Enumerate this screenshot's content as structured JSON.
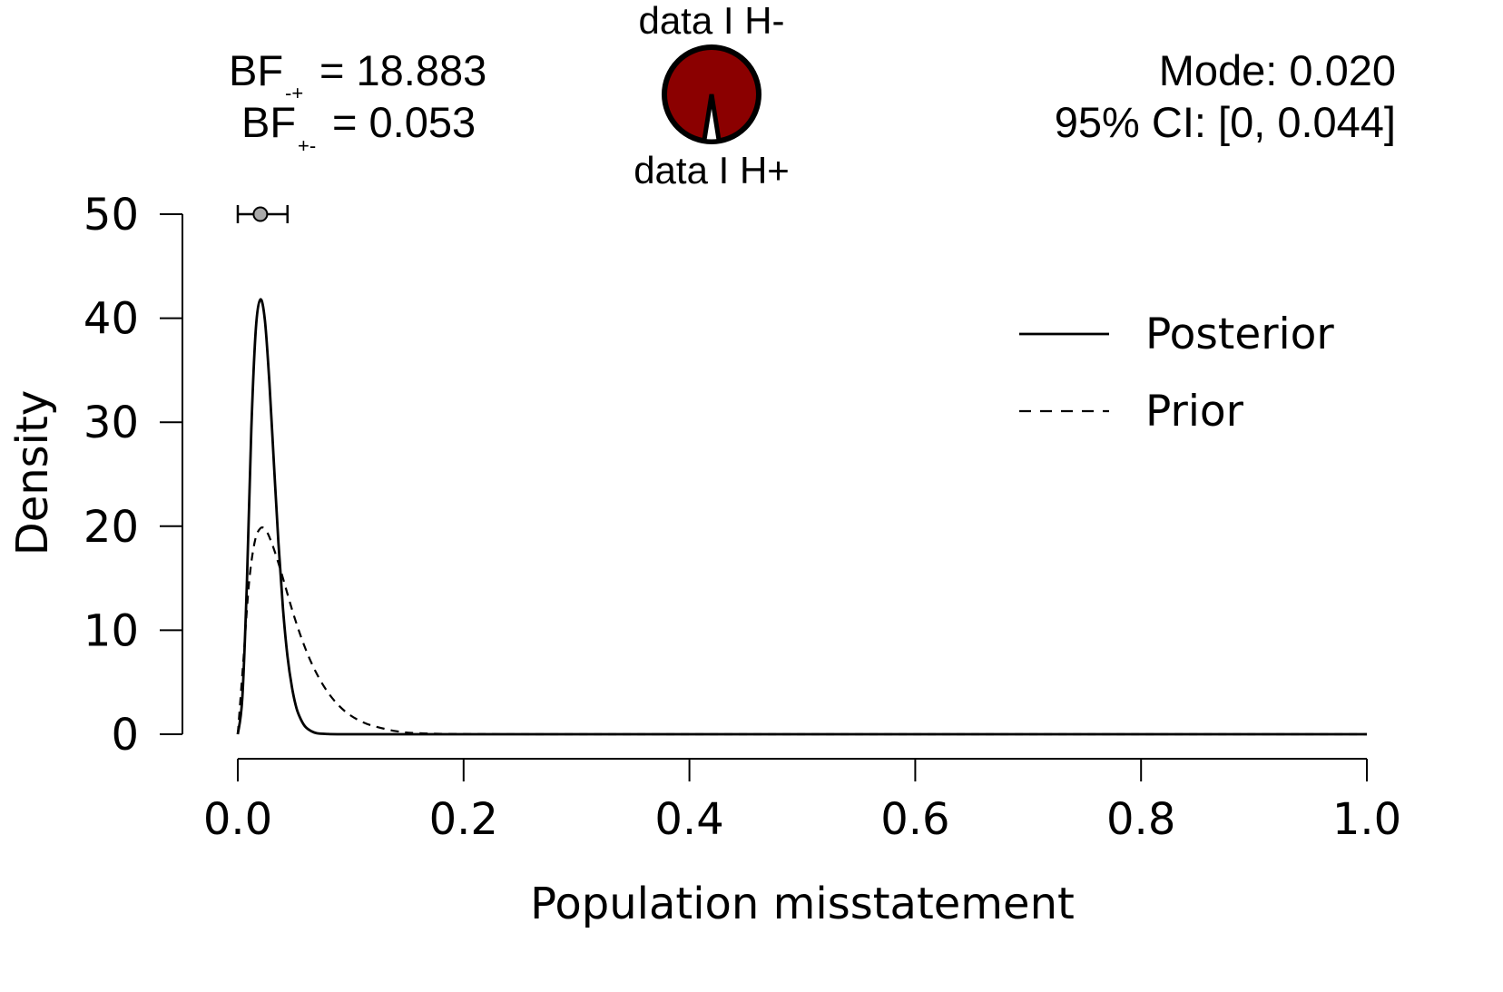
{
  "header": {
    "bf_minus_plus": {
      "base": "BF",
      "subscript": "-+",
      "text": "= 18.883"
    },
    "bf_plus_minus": {
      "base": "BF",
      "subscript": "+-",
      "text": "= 0.053"
    },
    "pie_top_label": "data I H-",
    "pie_bottom_label": "data I H+",
    "mode": "Mode: 0.020",
    "ci": "95% CI: [0, 0.044]"
  },
  "colors": {
    "pie_fill": "#8B0000",
    "pie_slice": "#ffffff",
    "marker": "#aaaaaa",
    "line": "#000000"
  },
  "pie": {
    "h_minus": 18.883,
    "h_plus": 1
  },
  "chart_data": {
    "type": "line",
    "xlabel": "Population misstatement",
    "ylabel": "Density",
    "xlim": [
      0,
      1
    ],
    "ylim": [
      0,
      50
    ],
    "x_ticks": [
      "0.0",
      "0.2",
      "0.4",
      "0.6",
      "0.8",
      "1.0"
    ],
    "y_ticks": [
      "0",
      "10",
      "20",
      "30",
      "40",
      "50"
    ],
    "legend": {
      "placement": "top-right"
    },
    "series": [
      {
        "name": "Posterior",
        "style": "solid",
        "x": [
          0,
          0.004,
          0.008,
          0.012,
          0.016,
          0.02,
          0.024,
          0.028,
          0.032,
          0.036,
          0.04,
          0.044,
          0.048,
          0.052,
          0.056,
          0.06,
          0.065,
          0.07,
          0.08,
          0.09,
          0.1,
          0.15,
          0.2,
          0.4,
          0.6,
          0.8,
          1.0
        ],
        "y": [
          0,
          3.5,
          14.3,
          29.4,
          39.0,
          41.8,
          39.8,
          33.8,
          26.0,
          18.4,
          12.1,
          7.5,
          4.5,
          2.5,
          1.4,
          0.7,
          0.3,
          0.1,
          0.02,
          0,
          0,
          0,
          0,
          0,
          0,
          0,
          0
        ]
      },
      {
        "name": "Prior",
        "style": "dashed",
        "x": [
          0,
          0.005,
          0.01,
          0.015,
          0.02,
          0.025,
          0.03,
          0.035,
          0.04,
          0.05,
          0.06,
          0.07,
          0.08,
          0.09,
          0.1,
          0.11,
          0.12,
          0.14,
          0.16,
          0.2,
          0.3,
          0.5,
          1.0
        ],
        "y": [
          0,
          7.2,
          14.6,
          18.5,
          19.8,
          19.6,
          18.4,
          16.8,
          15.0,
          11.3,
          8.2,
          5.8,
          4.0,
          2.7,
          1.8,
          1.2,
          0.8,
          0.3,
          0.1,
          0.02,
          0,
          0,
          0
        ]
      }
    ],
    "interval": {
      "point": 0.02,
      "lower": 0,
      "upper": 0.044,
      "y": 50
    }
  }
}
